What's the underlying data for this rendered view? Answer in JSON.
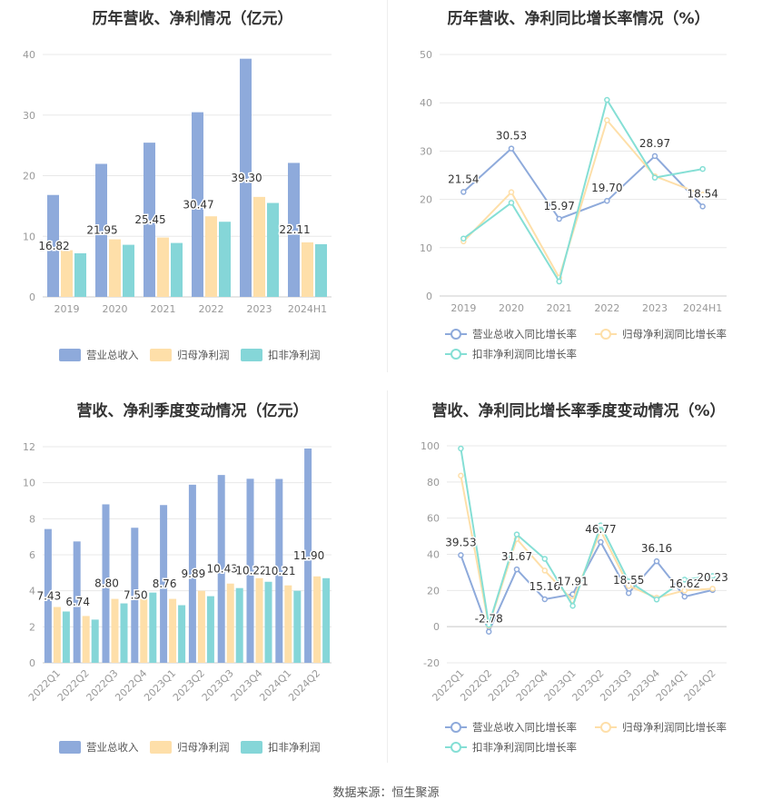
{
  "source_note": "数据来源：恒生聚源",
  "colors": {
    "revenue": "#8eaadb",
    "net_profit": "#fedfa9",
    "deducted_net_profit": "#85d6d8",
    "deducted_line": "#85dfd5",
    "grid": "#e8e8e8",
    "axis_text": "#999999",
    "title": "#333333",
    "label": "#333333"
  },
  "chart_data": [
    {
      "id": "annual_amount",
      "type": "bar",
      "title": "历年营收、净利情况（亿元）",
      "categories": [
        "2019",
        "2020",
        "2021",
        "2022",
        "2023",
        "2024H1"
      ],
      "ylim": [
        0,
        40
      ],
      "yticks": [
        "0",
        "10",
        "20",
        "30",
        "40"
      ],
      "series": [
        {
          "name": "营业总收入",
          "values": [
            16.82,
            21.95,
            25.45,
            30.47,
            39.3,
            22.11
          ],
          "labels": [
            "16.82",
            "21.95",
            "25.45",
            "30.47",
            "39.30",
            "22.11"
          ]
        },
        {
          "name": "归母净利润",
          "values": [
            7.7,
            9.5,
            9.8,
            13.3,
            16.5,
            9.0
          ]
        },
        {
          "name": "扣非净利润",
          "values": [
            7.2,
            8.6,
            8.9,
            12.4,
            15.5,
            8.7
          ]
        }
      ],
      "legend": "bottom",
      "grid": true
    },
    {
      "id": "annual_growth",
      "type": "line",
      "title": "历年营收、净利同比增长率情况（%）",
      "categories": [
        "2019",
        "2020",
        "2021",
        "2022",
        "2023",
        "2024H1"
      ],
      "ylim": [
        0,
        50
      ],
      "yticks": [
        "0",
        "10",
        "20",
        "30",
        "40",
        "50"
      ],
      "series": [
        {
          "name": "营业总收入同比增长率",
          "values": [
            21.54,
            30.53,
            15.97,
            19.7,
            28.97,
            18.54
          ],
          "labels": [
            "21.54",
            "30.53",
            "15.97",
            "19.70",
            "28.97",
            "18.54"
          ]
        },
        {
          "name": "归母净利润同比增长率",
          "values": [
            11.3,
            21.5,
            3.8,
            36.4,
            24.8,
            21.0
          ]
        },
        {
          "name": "扣非净利润同比增长率",
          "values": [
            11.9,
            19.3,
            3.0,
            40.6,
            24.5,
            26.3
          ]
        }
      ],
      "legend": "bottom",
      "grid": true
    },
    {
      "id": "quarterly_amount",
      "type": "bar",
      "title": "营收、净利季度变动情况（亿元）",
      "categories": [
        "2022Q1",
        "2022Q2",
        "2022Q3",
        "2022Q4",
        "2023Q1",
        "2023Q2",
        "2023Q3",
        "2023Q4",
        "2024Q1",
        "2024Q2"
      ],
      "ylim": [
        0,
        12
      ],
      "yticks": [
        "0",
        "2",
        "4",
        "6",
        "8",
        "10",
        "12"
      ],
      "series": [
        {
          "name": "营业总收入",
          "values": [
            7.43,
            6.74,
            8.8,
            7.5,
            8.76,
            9.89,
            10.43,
            10.22,
            10.21,
            11.9
          ],
          "labels": [
            "7.43",
            "6.74",
            "8.80",
            "7.50",
            "8.76",
            "9.89",
            "10.43",
            "10.22",
            "10.21",
            "11.90"
          ]
        },
        {
          "name": "归母净利润",
          "values": [
            3.1,
            2.6,
            3.55,
            3.55,
            3.55,
            4.0,
            4.4,
            4.7,
            4.3,
            4.8
          ]
        },
        {
          "name": "扣非净利润",
          "values": [
            2.85,
            2.4,
            3.3,
            3.9,
            3.2,
            3.7,
            4.15,
            4.5,
            4.0,
            4.7
          ]
        }
      ],
      "legend": "bottom",
      "grid": true
    },
    {
      "id": "quarterly_growth",
      "type": "line",
      "title": "营收、净利同比增长率季度变动情况（%）",
      "categories": [
        "2022Q1",
        "2022Q2",
        "2022Q3",
        "2022Q4",
        "2023Q1",
        "2023Q2",
        "2023Q3",
        "2023Q4",
        "2024Q1",
        "2024Q2"
      ],
      "ylim": [
        -20,
        100
      ],
      "yticks": [
        "-20",
        "0",
        "20",
        "40",
        "60",
        "80",
        "100"
      ],
      "series": [
        {
          "name": "营业总收入同比增长率",
          "values": [
            39.53,
            -2.78,
            31.67,
            15.16,
            17.91,
            46.77,
            18.55,
            36.16,
            16.62,
            20.23
          ],
          "labels": [
            "39.53",
            "-2.78",
            "31.67",
            "15.16",
            "17.91",
            "46.77",
            "18.55",
            "36.16",
            "16.62",
            "20.23"
          ]
        },
        {
          "name": "归母净利润同比增长率",
          "values": [
            83.5,
            0.5,
            48.5,
            31.0,
            14.5,
            53.0,
            22.5,
            16.0,
            20.0,
            21.0
          ]
        },
        {
          "name": "扣非净利润同比增长率",
          "values": [
            98.5,
            1.0,
            51.0,
            37.5,
            11.5,
            56.0,
            25.0,
            15.0,
            26.0,
            28.0
          ]
        }
      ],
      "legend": "bottom",
      "grid": true
    }
  ]
}
